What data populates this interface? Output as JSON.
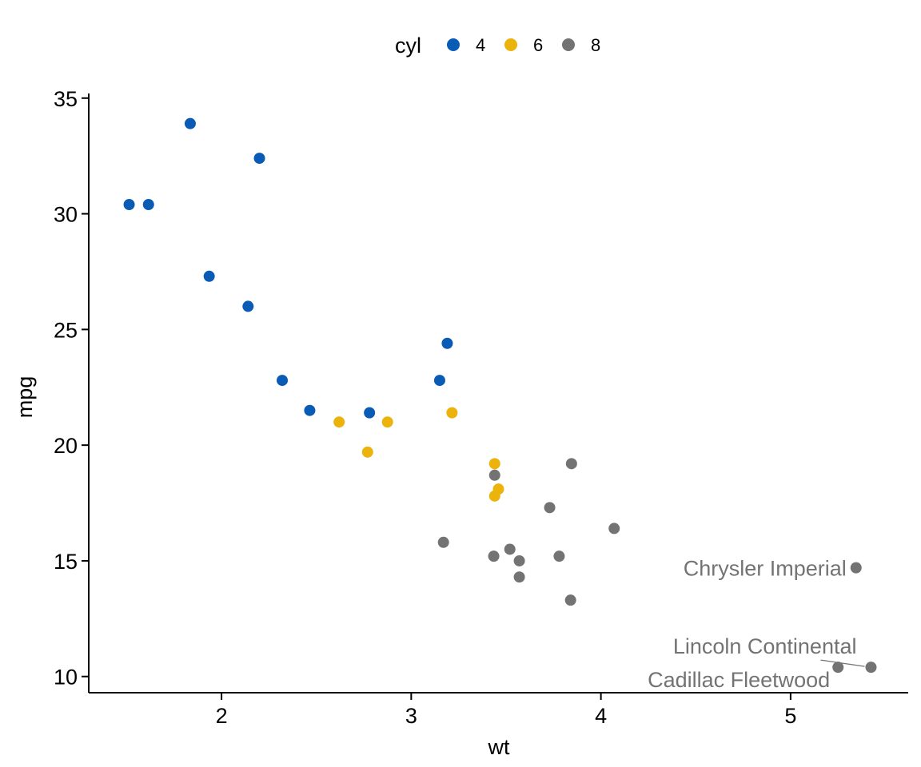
{
  "chart_data": {
    "type": "scatter",
    "xlabel": "wt",
    "ylabel": "mpg",
    "xlim": [
      1.3,
      5.62
    ],
    "ylim": [
      9.3,
      35.2
    ],
    "x_ticks": [
      2,
      3,
      4,
      5
    ],
    "y_ticks": [
      10,
      15,
      20,
      25,
      30,
      35
    ],
    "grid": false,
    "legend": {
      "title": "cyl",
      "position": "top",
      "entries": [
        {
          "label": "4",
          "color": "#0A5BB6"
        },
        {
          "label": "6",
          "color": "#EBB30C"
        },
        {
          "label": "8",
          "color": "#737373"
        }
      ]
    },
    "series": [
      {
        "name": "4",
        "color": "#0A5BB6",
        "points": [
          {
            "x": 1.835,
            "y": 33.9
          },
          {
            "x": 2.2,
            "y": 32.4
          },
          {
            "x": 1.513,
            "y": 30.4
          },
          {
            "x": 1.615,
            "y": 30.4
          },
          {
            "x": 1.935,
            "y": 27.3
          },
          {
            "x": 2.14,
            "y": 26.0
          },
          {
            "x": 3.19,
            "y": 24.4
          },
          {
            "x": 2.32,
            "y": 22.8
          },
          {
            "x": 3.15,
            "y": 22.8
          },
          {
            "x": 2.465,
            "y": 21.5
          },
          {
            "x": 2.78,
            "y": 21.4
          }
        ]
      },
      {
        "name": "6",
        "color": "#EBB30C",
        "points": [
          {
            "x": 2.62,
            "y": 21.0
          },
          {
            "x": 2.875,
            "y": 21.0
          },
          {
            "x": 3.215,
            "y": 21.4
          },
          {
            "x": 2.77,
            "y": 19.7
          },
          {
            "x": 3.44,
            "y": 19.2
          },
          {
            "x": 3.46,
            "y": 18.1
          },
          {
            "x": 3.44,
            "y": 17.8
          }
        ]
      },
      {
        "name": "8",
        "color": "#737373",
        "points": [
          {
            "x": 3.845,
            "y": 19.2
          },
          {
            "x": 3.44,
            "y": 18.7
          },
          {
            "x": 3.73,
            "y": 17.3
          },
          {
            "x": 4.07,
            "y": 16.4
          },
          {
            "x": 3.17,
            "y": 15.8
          },
          {
            "x": 3.52,
            "y": 15.5
          },
          {
            "x": 3.435,
            "y": 15.2
          },
          {
            "x": 3.78,
            "y": 15.2
          },
          {
            "x": 3.57,
            "y": 15.0
          },
          {
            "x": 3.57,
            "y": 14.3
          },
          {
            "x": 3.84,
            "y": 13.3
          },
          {
            "x": 5.345,
            "y": 14.7
          },
          {
            "x": 5.25,
            "y": 10.4
          },
          {
            "x": 5.424,
            "y": 10.4
          }
        ]
      }
    ],
    "annotations": [
      {
        "text": "Chrysler Imperial",
        "x": 5.345,
        "y": 14.7,
        "color": "#737373"
      },
      {
        "text": "Lincoln Continental",
        "x": 5.424,
        "y": 10.4,
        "color": "#737373"
      },
      {
        "text": "Cadillac Fleetwood",
        "x": 5.25,
        "y": 10.4,
        "color": "#737373"
      }
    ]
  }
}
